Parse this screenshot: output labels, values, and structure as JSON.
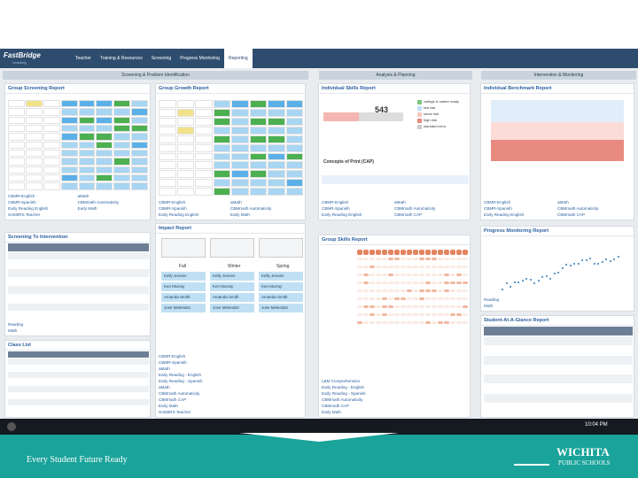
{
  "header": {
    "logo": "FastBridge",
    "logo_sub": "Learning",
    "nav": [
      "Teacher",
      "Training & Resources",
      "Screening",
      "Progress Monitoring",
      "Reporting"
    ]
  },
  "sections": [
    "Screening & Problem Identification",
    "Analysis & Planning",
    "Intervention & Monitoring"
  ],
  "panels": [
    {
      "title": "Group Screening Report",
      "links": [
        "CBMR-English",
        "aMath",
        "CBMR-Spanish",
        "CBMmath Automaticity",
        "Early Reading English",
        "Early Math",
        "SAEBRS Teacher"
      ]
    },
    {
      "title": "Group Growth Report",
      "links": [
        "CBMR-English",
        "aMath",
        "CBMR-Spanish",
        "CBMmath Automaticity",
        "Early Reading English",
        "Early Math"
      ]
    },
    {
      "title": "Individual Skills Report",
      "links": [
        "CBMR-English",
        "aMath",
        "CBMR-Spanish",
        "CBMmath Automaticity",
        "Early Reading English",
        "CBMmath CAP"
      ]
    },
    {
      "title": "Individual Benchmark Report",
      "links": [
        "CBMR-English",
        "aMath",
        "CBMR-Spanish",
        "CBMmath Automaticity",
        "Early Reading English",
        "CBMmath CAP"
      ]
    },
    {
      "title": "Screening To Intervention",
      "links": [
        "Reading",
        "Math"
      ]
    },
    {
      "title": "Impact Report",
      "links": [
        "CBMR-English",
        "CBMR-Spanish",
        "aMath",
        "Early Reading - English",
        "Early Reading - Spanish",
        "aMath",
        "CBMmath Automaticity",
        "CBMmath CAP",
        "Early Math",
        "SAEBRS Teacher"
      ]
    },
    {
      "title": "Group Skills Report",
      "links": [
        "LBM Comprehension",
        "Early Reading - English",
        "Early Reading - Spanish",
        "CBMmath Automaticity",
        "CBMmath CAP",
        "Early Math"
      ]
    },
    {
      "title": "Progress Monitoring Report",
      "links": [
        "Reading",
        "Math"
      ]
    },
    {
      "title": "Class List",
      "links": []
    },
    {
      "title": "Student-At-A-Glance Report",
      "links": []
    }
  ],
  "skills_chart": {
    "score": "543",
    "legend": [
      "college & career ready",
      "low risk",
      "some risk",
      "high risk",
      "standard error"
    ],
    "subtitle": "Concepts of Print (CAP)"
  },
  "impact": {
    "columns": [
      "Fall",
      "Winter",
      "Spring"
    ],
    "students": [
      "Kelly Jensen",
      "Ken Murray",
      "Amanda Smith",
      "Jose Melendez"
    ]
  },
  "taskbar": {
    "time": "10:04 PM"
  },
  "footer": {
    "tagline": "Every Student Future Ready",
    "logo": "WICHITA",
    "logo_sub": "PUBLIC SCHOOLS"
  }
}
